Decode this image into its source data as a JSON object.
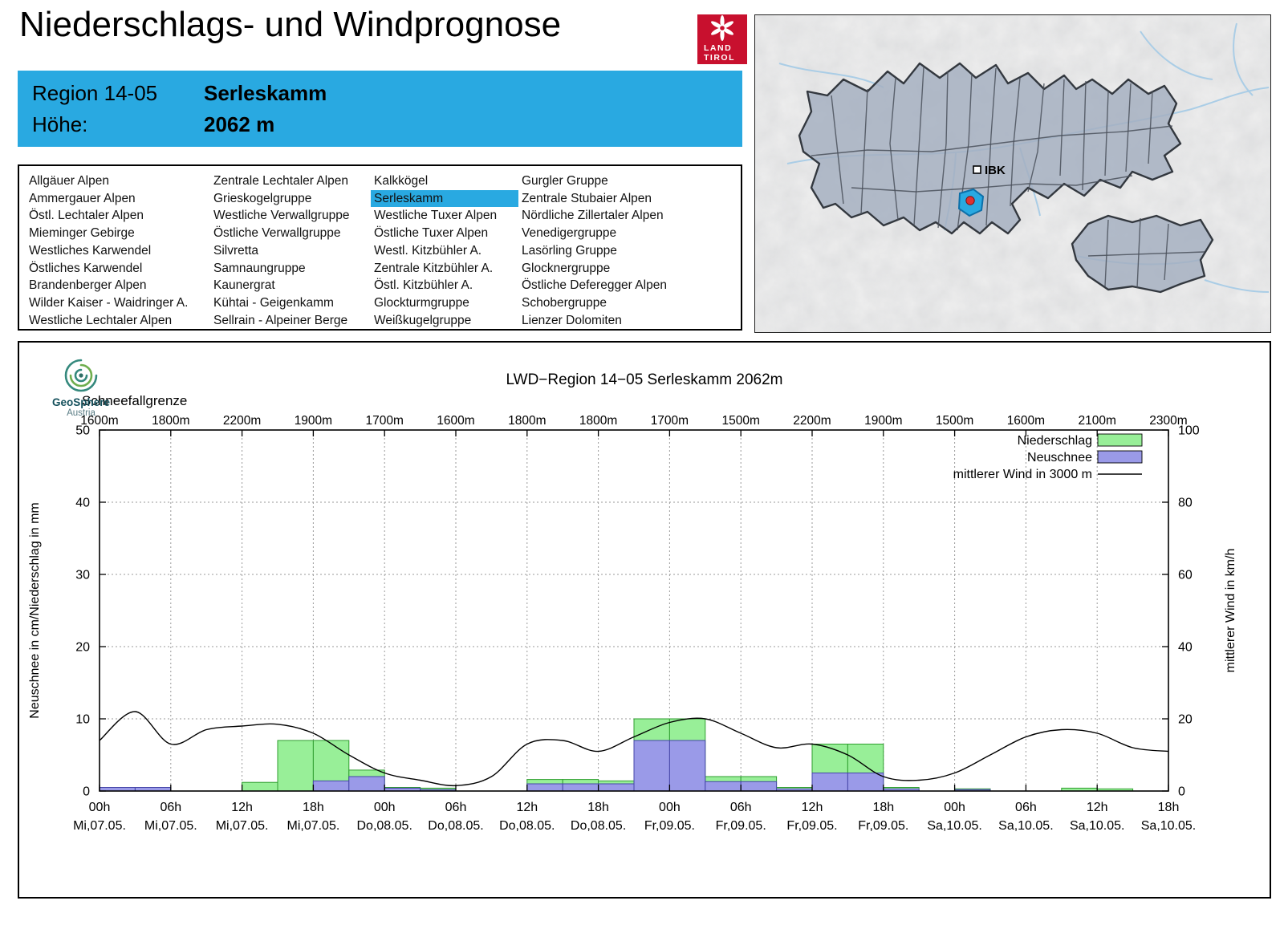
{
  "header": {
    "title": "Niederschlags- und Windprognose"
  },
  "logo": {
    "line1": "LAND",
    "line2": "TIROL"
  },
  "geosphere": {
    "name": "GeoSphere",
    "country": "Austria"
  },
  "region_info": {
    "region_label": "Region 14-05",
    "region_name": "Serleskamm",
    "altitude_label": "Höhe:",
    "altitude_value": "2062 m"
  },
  "map": {
    "city_label": "IBK"
  },
  "region_list": {
    "selected": "Serleskamm",
    "columns": [
      [
        "Allgäuer Alpen",
        "Ammergauer Alpen",
        "Östl. Lechtaler Alpen",
        "Mieminger Gebirge",
        "Westliches Karwendel",
        "Östliches Karwendel",
        "Brandenberger Alpen",
        "Wilder Kaiser - Waidringer A.",
        "Westliche Lechtaler Alpen"
      ],
      [
        "Zentrale Lechtaler Alpen",
        "Grieskogelgruppe",
        "Westliche Verwallgruppe",
        "Östliche Verwallgruppe",
        "Silvretta",
        "Samnaungruppe",
        "Kaunergrat",
        "Kühtai - Geigenkamm",
        "Sellrain - Alpeiner Berge"
      ],
      [
        "Kalkkögel",
        "Serleskamm",
        "Westliche Tuxer Alpen",
        "Östliche Tuxer Alpen",
        "Westl. Kitzbühler A.",
        "Zentrale Kitzbühler A.",
        "Östl. Kitzbühler A.",
        "Glockturmgruppe",
        "Weißkugelgruppe"
      ],
      [
        "Gurgler Gruppe",
        "Zentrale Stubaier Alpen",
        "Nördliche Zillertaler Alpen",
        "Venedigergruppe",
        "Lasörling Gruppe",
        "Glocknergruppe",
        "Östliche Deferegger Alpen",
        "Schobergruppe",
        "Lienzer Dolomiten"
      ]
    ]
  },
  "colors": {
    "accent_blue": "#29a9e1",
    "precip_green": "#98ef98",
    "newsnow_blue": "#9a9ae8",
    "logo_red": "#c8102e"
  },
  "chart_data": {
    "type": "bar",
    "title": "LWD−Region 14−05 Serleskamm 2062m",
    "snowline": {
      "label": "Schneefallgrenze",
      "unit": "m",
      "values_m": [
        1600,
        1800,
        2200,
        1900,
        1700,
        1600,
        1800,
        1800,
        1700,
        1500,
        2200,
        1900,
        1500,
        1600,
        2100,
        2300
      ]
    },
    "axes": {
      "left_label": "Neuschnee in cm/Niederschlag in mm",
      "right_label": "mittlerer Wind in km/h",
      "left_range": [
        0,
        50
      ],
      "right_range": [
        0,
        100
      ],
      "left_ticks": [
        0,
        10,
        20,
        30,
        40,
        50
      ],
      "right_ticks": [
        0,
        20,
        40,
        60,
        80,
        100
      ]
    },
    "hours_total": 90,
    "x_ticks": [
      {
        "hour": "00h",
        "date": "Mi,07.05."
      },
      {
        "hour": "06h",
        "date": "Mi,07.05."
      },
      {
        "hour": "12h",
        "date": "Mi,07.05."
      },
      {
        "hour": "18h",
        "date": "Mi,07.05."
      },
      {
        "hour": "00h",
        "date": "Do,08.05."
      },
      {
        "hour": "06h",
        "date": "Do,08.05."
      },
      {
        "hour": "12h",
        "date": "Do,08.05."
      },
      {
        "hour": "18h",
        "date": "Do,08.05."
      },
      {
        "hour": "00h",
        "date": "Fr,09.05."
      },
      {
        "hour": "06h",
        "date": "Fr,09.05."
      },
      {
        "hour": "12h",
        "date": "Fr,09.05."
      },
      {
        "hour": "18h",
        "date": "Fr,09.05."
      },
      {
        "hour": "00h",
        "date": "Sa,10.05."
      },
      {
        "hour": "06h",
        "date": "Sa,10.05."
      },
      {
        "hour": "12h",
        "date": "Sa,10.05."
      },
      {
        "hour": "18h",
        "date": "Sa,10.05."
      }
    ],
    "legend": [
      {
        "label": "Niederschlag",
        "series": "precip"
      },
      {
        "label": "Neuschnee",
        "series": "newsnow"
      },
      {
        "label": "mittlerer Wind in 3000 m",
        "series": "wind"
      }
    ],
    "bars_3h": [
      {
        "t": 0,
        "precip_mm": 0,
        "newsnow_cm": 0.5
      },
      {
        "t": 3,
        "precip_mm": 0,
        "newsnow_cm": 0.5
      },
      {
        "t": 12,
        "precip_mm": 1.2,
        "newsnow_cm": 0
      },
      {
        "t": 15,
        "precip_mm": 7,
        "newsnow_cm": 0
      },
      {
        "t": 18,
        "precip_mm": 7,
        "newsnow_cm": 1.4
      },
      {
        "t": 21,
        "precip_mm": 2.9,
        "newsnow_cm": 2.0
      },
      {
        "t": 24,
        "precip_mm": 0.5,
        "newsnow_cm": 0.4
      },
      {
        "t": 27,
        "precip_mm": 0.4,
        "newsnow_cm": 0.2
      },
      {
        "t": 36,
        "precip_mm": 1.6,
        "newsnow_cm": 1.0
      },
      {
        "t": 39,
        "precip_mm": 1.6,
        "newsnow_cm": 1.0
      },
      {
        "t": 42,
        "precip_mm": 1.4,
        "newsnow_cm": 1.0
      },
      {
        "t": 45,
        "precip_mm": 10,
        "newsnow_cm": 7
      },
      {
        "t": 48,
        "precip_mm": 10,
        "newsnow_cm": 7
      },
      {
        "t": 51,
        "precip_mm": 2.0,
        "newsnow_cm": 1.3
      },
      {
        "t": 54,
        "precip_mm": 2.0,
        "newsnow_cm": 1.3
      },
      {
        "t": 57,
        "precip_mm": 0.5,
        "newsnow_cm": 0.3
      },
      {
        "t": 60,
        "precip_mm": 6.5,
        "newsnow_cm": 2.5
      },
      {
        "t": 63,
        "precip_mm": 6.5,
        "newsnow_cm": 2.5
      },
      {
        "t": 66,
        "precip_mm": 0.5,
        "newsnow_cm": 0.3
      },
      {
        "t": 72,
        "precip_mm": 0.3,
        "newsnow_cm": 0.2
      },
      {
        "t": 81,
        "precip_mm": 0.4,
        "newsnow_cm": 0
      },
      {
        "t": 84,
        "precip_mm": 0.3,
        "newsnow_cm": 0
      }
    ],
    "wind_kmh": {
      "hours": [
        0,
        3,
        6,
        9,
        12,
        15,
        18,
        21,
        24,
        27,
        30,
        33,
        36,
        39,
        42,
        45,
        48,
        51,
        54,
        57,
        60,
        63,
        66,
        69,
        72,
        75,
        78,
        81,
        84,
        87,
        90
      ],
      "values": [
        14,
        22,
        13,
        17,
        18,
        18.5,
        16,
        10,
        5,
        3,
        1.5,
        4,
        13,
        14,
        11,
        15,
        19,
        20,
        16,
        12,
        13,
        10,
        4,
        3,
        5,
        10,
        15,
        17,
        16,
        12,
        11
      ]
    }
  }
}
